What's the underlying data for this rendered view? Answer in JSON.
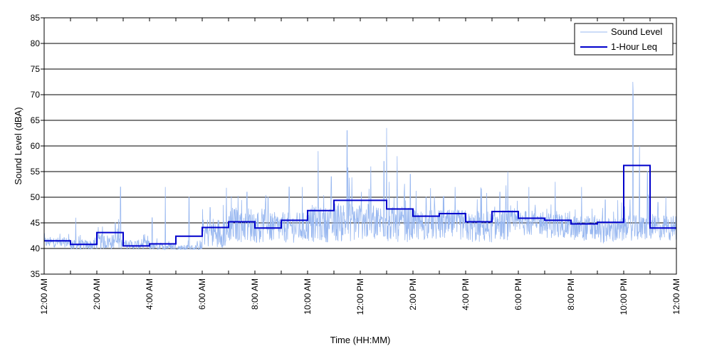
{
  "chart_data": {
    "type": "line",
    "xlabel": "Time (HH:MM)",
    "ylabel": "Sound Level (dBA)",
    "ylim": [
      35,
      85
    ],
    "xlim": [
      0,
      24
    ],
    "x_unit": "hours since 12:00 AM",
    "y_ticks": [
      35,
      40,
      45,
      50,
      55,
      60,
      65,
      70,
      75,
      80,
      85
    ],
    "x_ticks": [
      {
        "x": 0,
        "label": "12:00 AM"
      },
      {
        "x": 2,
        "label": "2:00 AM"
      },
      {
        "x": 4,
        "label": "4:00 AM"
      },
      {
        "x": 6,
        "label": "6:00 AM"
      },
      {
        "x": 8,
        "label": "8:00 AM"
      },
      {
        "x": 10,
        "label": "10:00 AM"
      },
      {
        "x": 12,
        "label": "12:00 PM"
      },
      {
        "x": 14,
        "label": "2:00 PM"
      },
      {
        "x": 16,
        "label": "4:00 PM"
      },
      {
        "x": 18,
        "label": "6:00 PM"
      },
      {
        "x": 20,
        "label": "8:00 PM"
      },
      {
        "x": 22,
        "label": "10:00 PM"
      },
      {
        "x": 24,
        "label": "12:00 AM"
      }
    ],
    "grid": "horizontal",
    "legend_position": "top-right",
    "colors": {
      "sound_level": "#99b8f0",
      "leq": "#0000cc"
    },
    "series": [
      {
        "name": "Sound Level",
        "style": "thin",
        "hourly_base": [
          41.0,
          40.5,
          41.0,
          40.5,
          40.2,
          40.0,
          42.5,
          44.0,
          43.5,
          43.5,
          44.0,
          44.5,
          44.5,
          44.0,
          44.0,
          44.0,
          43.5,
          44.0,
          44.5,
          44.0,
          43.5,
          43.0,
          43.5,
          43.5
        ],
        "hourly_range": [
          1.0,
          1.0,
          1.5,
          1.0,
          0.8,
          0.6,
          3.0,
          3.5,
          3.0,
          3.0,
          3.5,
          4.0,
          3.5,
          3.5,
          3.0,
          3.0,
          3.0,
          3.0,
          2.5,
          2.5,
          2.5,
          2.5,
          2.5,
          2.5
        ],
        "peaks": [
          {
            "x": 1.2,
            "y": 46.0
          },
          {
            "x": 2.7,
            "y": 47.0
          },
          {
            "x": 2.9,
            "y": 54.0
          },
          {
            "x": 4.1,
            "y": 48.0
          },
          {
            "x": 4.6,
            "y": 52.0
          },
          {
            "x": 5.5,
            "y": 52.0
          },
          {
            "x": 6.3,
            "y": 50.0
          },
          {
            "x": 7.7,
            "y": 53.0
          },
          {
            "x": 8.5,
            "y": 52.0
          },
          {
            "x": 9.3,
            "y": 54.0
          },
          {
            "x": 9.8,
            "y": 52.0
          },
          {
            "x": 10.4,
            "y": 59.0
          },
          {
            "x": 10.9,
            "y": 56.0
          },
          {
            "x": 11.5,
            "y": 65.0
          },
          {
            "x": 12.4,
            "y": 56.0
          },
          {
            "x": 12.9,
            "y": 59.0
          },
          {
            "x": 13.0,
            "y": 63.5
          },
          {
            "x": 13.4,
            "y": 58.0
          },
          {
            "x": 13.9,
            "y": 56.5
          },
          {
            "x": 14.5,
            "y": 52.0
          },
          {
            "x": 15.6,
            "y": 52.0
          },
          {
            "x": 17.3,
            "y": 53.0
          },
          {
            "x": 17.6,
            "y": 55.0
          },
          {
            "x": 18.4,
            "y": 52.0
          },
          {
            "x": 19.4,
            "y": 53.0
          },
          {
            "x": 20.4,
            "y": 52.0
          },
          {
            "x": 21.3,
            "y": 51.5
          },
          {
            "x": 22.35,
            "y": 73.5
          },
          {
            "x": 22.6,
            "y": 60.0
          },
          {
            "x": 22.9,
            "y": 57.0
          },
          {
            "x": 23.3,
            "y": 51.0
          },
          {
            "x": 23.6,
            "y": 50.0
          }
        ]
      },
      {
        "name": "1-Hour Leq",
        "style": "step",
        "hours": [
          0,
          1,
          2,
          3,
          4,
          5,
          6,
          7,
          8,
          9,
          10,
          11,
          12,
          13,
          14,
          15,
          16,
          17,
          18,
          19,
          20,
          21,
          22,
          23
        ],
        "values": [
          41.5,
          40.8,
          43.1,
          40.5,
          40.9,
          42.4,
          44.1,
          45.2,
          44.0,
          45.5,
          47.4,
          49.4,
          49.4,
          47.7,
          46.3,
          46.8,
          45.2,
          47.2,
          45.9,
          45.5,
          44.8,
          45.1,
          56.2,
          44.0
        ]
      }
    ]
  }
}
